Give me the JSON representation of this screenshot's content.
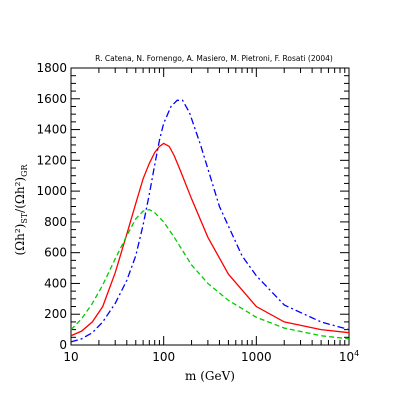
{
  "chart_data": {
    "type": "line",
    "title": "R. Catena, N. Fornengo, A. Masiero, M. Pietroni, F. Rosati (2004)",
    "xlabel": "m (GeV)",
    "ylabel": {
      "base": "(Ωh²)",
      "sub1": "ST",
      "slash": "/(Ωh²)",
      "sub2": "GR"
    },
    "x_scale": "log",
    "xlim": [
      10,
      10000
    ],
    "ylim": [
      0,
      1800
    ],
    "x_ticks": [
      {
        "value": 10,
        "label": "10"
      },
      {
        "value": 100,
        "label": "100"
      },
      {
        "value": 1000,
        "label": "1000"
      },
      {
        "value": 10000,
        "label": "10",
        "sup": "4"
      }
    ],
    "y_ticks": [
      0,
      200,
      400,
      600,
      800,
      1000,
      1200,
      1400,
      1600,
      1800
    ],
    "grid": false,
    "series": [
      {
        "color": "#ff0000",
        "dash": "solid",
        "x": [
          10,
          13,
          17,
          22,
          30,
          40,
          50,
          60,
          70,
          80,
          90,
          100,
          115,
          130,
          150,
          200,
          300,
          500,
          1000,
          2000,
          5000,
          10000
        ],
        "y": [
          60,
          90,
          150,
          250,
          470,
          720,
          920,
          1080,
          1180,
          1250,
          1290,
          1310,
          1290,
          1230,
          1140,
          950,
          700,
          460,
          250,
          150,
          100,
          80
        ]
      },
      {
        "color": "#0000ff",
        "dash": "dashdot",
        "x": [
          10,
          13,
          17,
          22,
          30,
          40,
          50,
          60,
          70,
          80,
          90,
          100,
          120,
          140,
          160,
          190,
          250,
          400,
          700,
          1000,
          2000,
          5000,
          10000
        ],
        "y": [
          20,
          40,
          80,
          150,
          270,
          420,
          580,
          780,
          980,
          1170,
          1330,
          1440,
          1550,
          1590,
          1590,
          1510,
          1300,
          900,
          580,
          450,
          260,
          150,
          100
        ]
      },
      {
        "color": "#00cc00",
        "dash": "dashed",
        "x": [
          10,
          13,
          17,
          22,
          30,
          40,
          50,
          60,
          70,
          80,
          100,
          130,
          200,
          300,
          500,
          1000,
          2000,
          5000,
          10000
        ],
        "y": [
          100,
          170,
          270,
          390,
          560,
          710,
          820,
          870,
          880,
          860,
          800,
          700,
          520,
          400,
          290,
          180,
          110,
          60,
          40
        ]
      }
    ]
  }
}
